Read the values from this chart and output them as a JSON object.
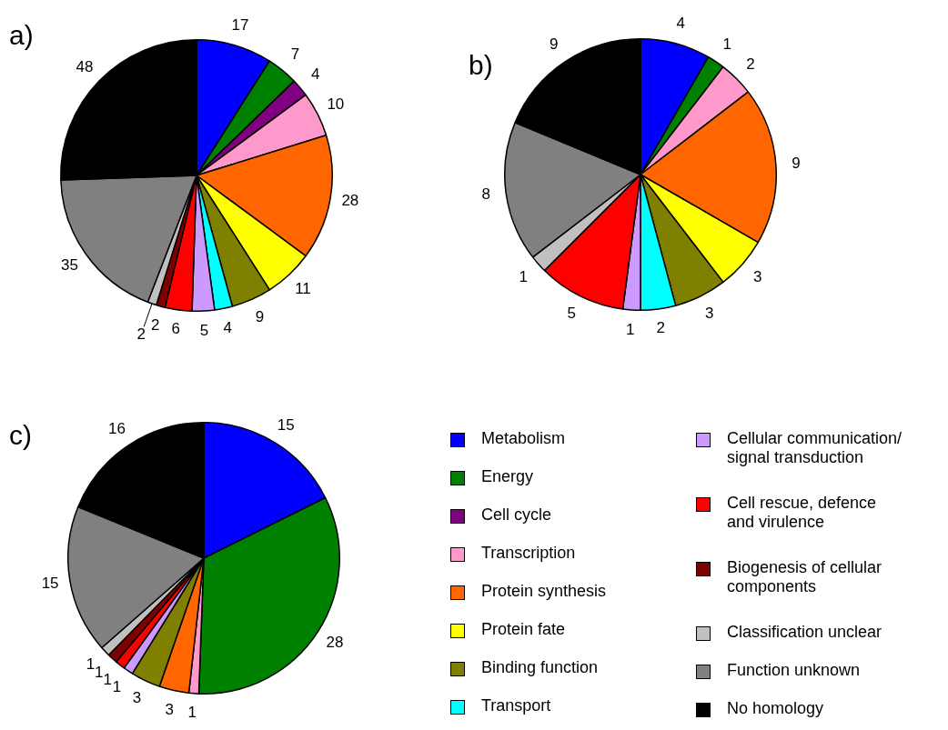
{
  "chart_data": [
    {
      "type": "pie",
      "title": "a)",
      "categories": [
        null,
        null,
        null,
        null,
        null,
        null,
        null,
        null,
        null,
        null,
        null,
        null,
        null,
        null
      ],
      "values": [
        17,
        7,
        4,
        10,
        28,
        11,
        9,
        4,
        5,
        6,
        2,
        2,
        35,
        48
      ],
      "colors": [
        "#0000ff",
        "#008000",
        "#800080",
        "#ff99cc",
        "#ff6600",
        "#ffff00",
        "#808000",
        "#00ffff",
        "#cc99ff",
        "#ff0000",
        "#800000",
        "#c0c0c0",
        "#808080",
        "#000000"
      ],
      "data_labels": true
    },
    {
      "type": "pie",
      "title": "b)",
      "categories": [
        null,
        null,
        null,
        null,
        null,
        null,
        null,
        null,
        null,
        null,
        null,
        null,
        null,
        null
      ],
      "values": [
        4,
        1,
        0,
        2,
        9,
        3,
        3,
        2,
        1,
        5,
        0,
        1,
        8,
        9
      ],
      "value_labels": [
        "4",
        "1",
        null,
        "2",
        "9",
        "3",
        "3",
        "2",
        "1",
        "5",
        null,
        "1",
        "8",
        "9"
      ],
      "colors": [
        "#0000ff",
        "#008000",
        "#800080",
        "#ff99cc",
        "#ff6600",
        "#ffff00",
        "#808000",
        "#00ffff",
        "#cc99ff",
        "#ff0000",
        "#800000",
        "#c0c0c0",
        "#808080",
        "#000000"
      ]
    },
    {
      "type": "pie",
      "title": "c)",
      "categories": [
        "Metabolism",
        "Energy",
        "Cell cycle",
        "Transcription",
        "Protein synthesis",
        "Protein fate",
        "Binding function",
        "Transport",
        "Cellular communication/\nsignal transduction",
        "Cell rescue, defence\nand virulence",
        "Biogenesis of cellular\ncomponents",
        "Classification unclear",
        "Function unknown",
        "No homology"
      ],
      "values": [
        15,
        28,
        0,
        1,
        3,
        0,
        3,
        0,
        1,
        1,
        1,
        1,
        15,
        16
      ],
      "value_labels": [
        "15",
        "28",
        null,
        "1",
        "3",
        null,
        "3",
        null,
        "1",
        "1",
        "1",
        "1",
        "15",
        "16"
      ],
      "colors": [
        "#0000ff",
        "#008000",
        "#800080",
        "#ff99cc",
        "#ff6600",
        "#ffff00",
        "#808000",
        "#00ffff",
        "#cc99ff",
        "#ff0000",
        "#800000",
        "#c0c0c0",
        "#808080",
        "#000000"
      ],
      "legend": "right"
    }
  ]
}
